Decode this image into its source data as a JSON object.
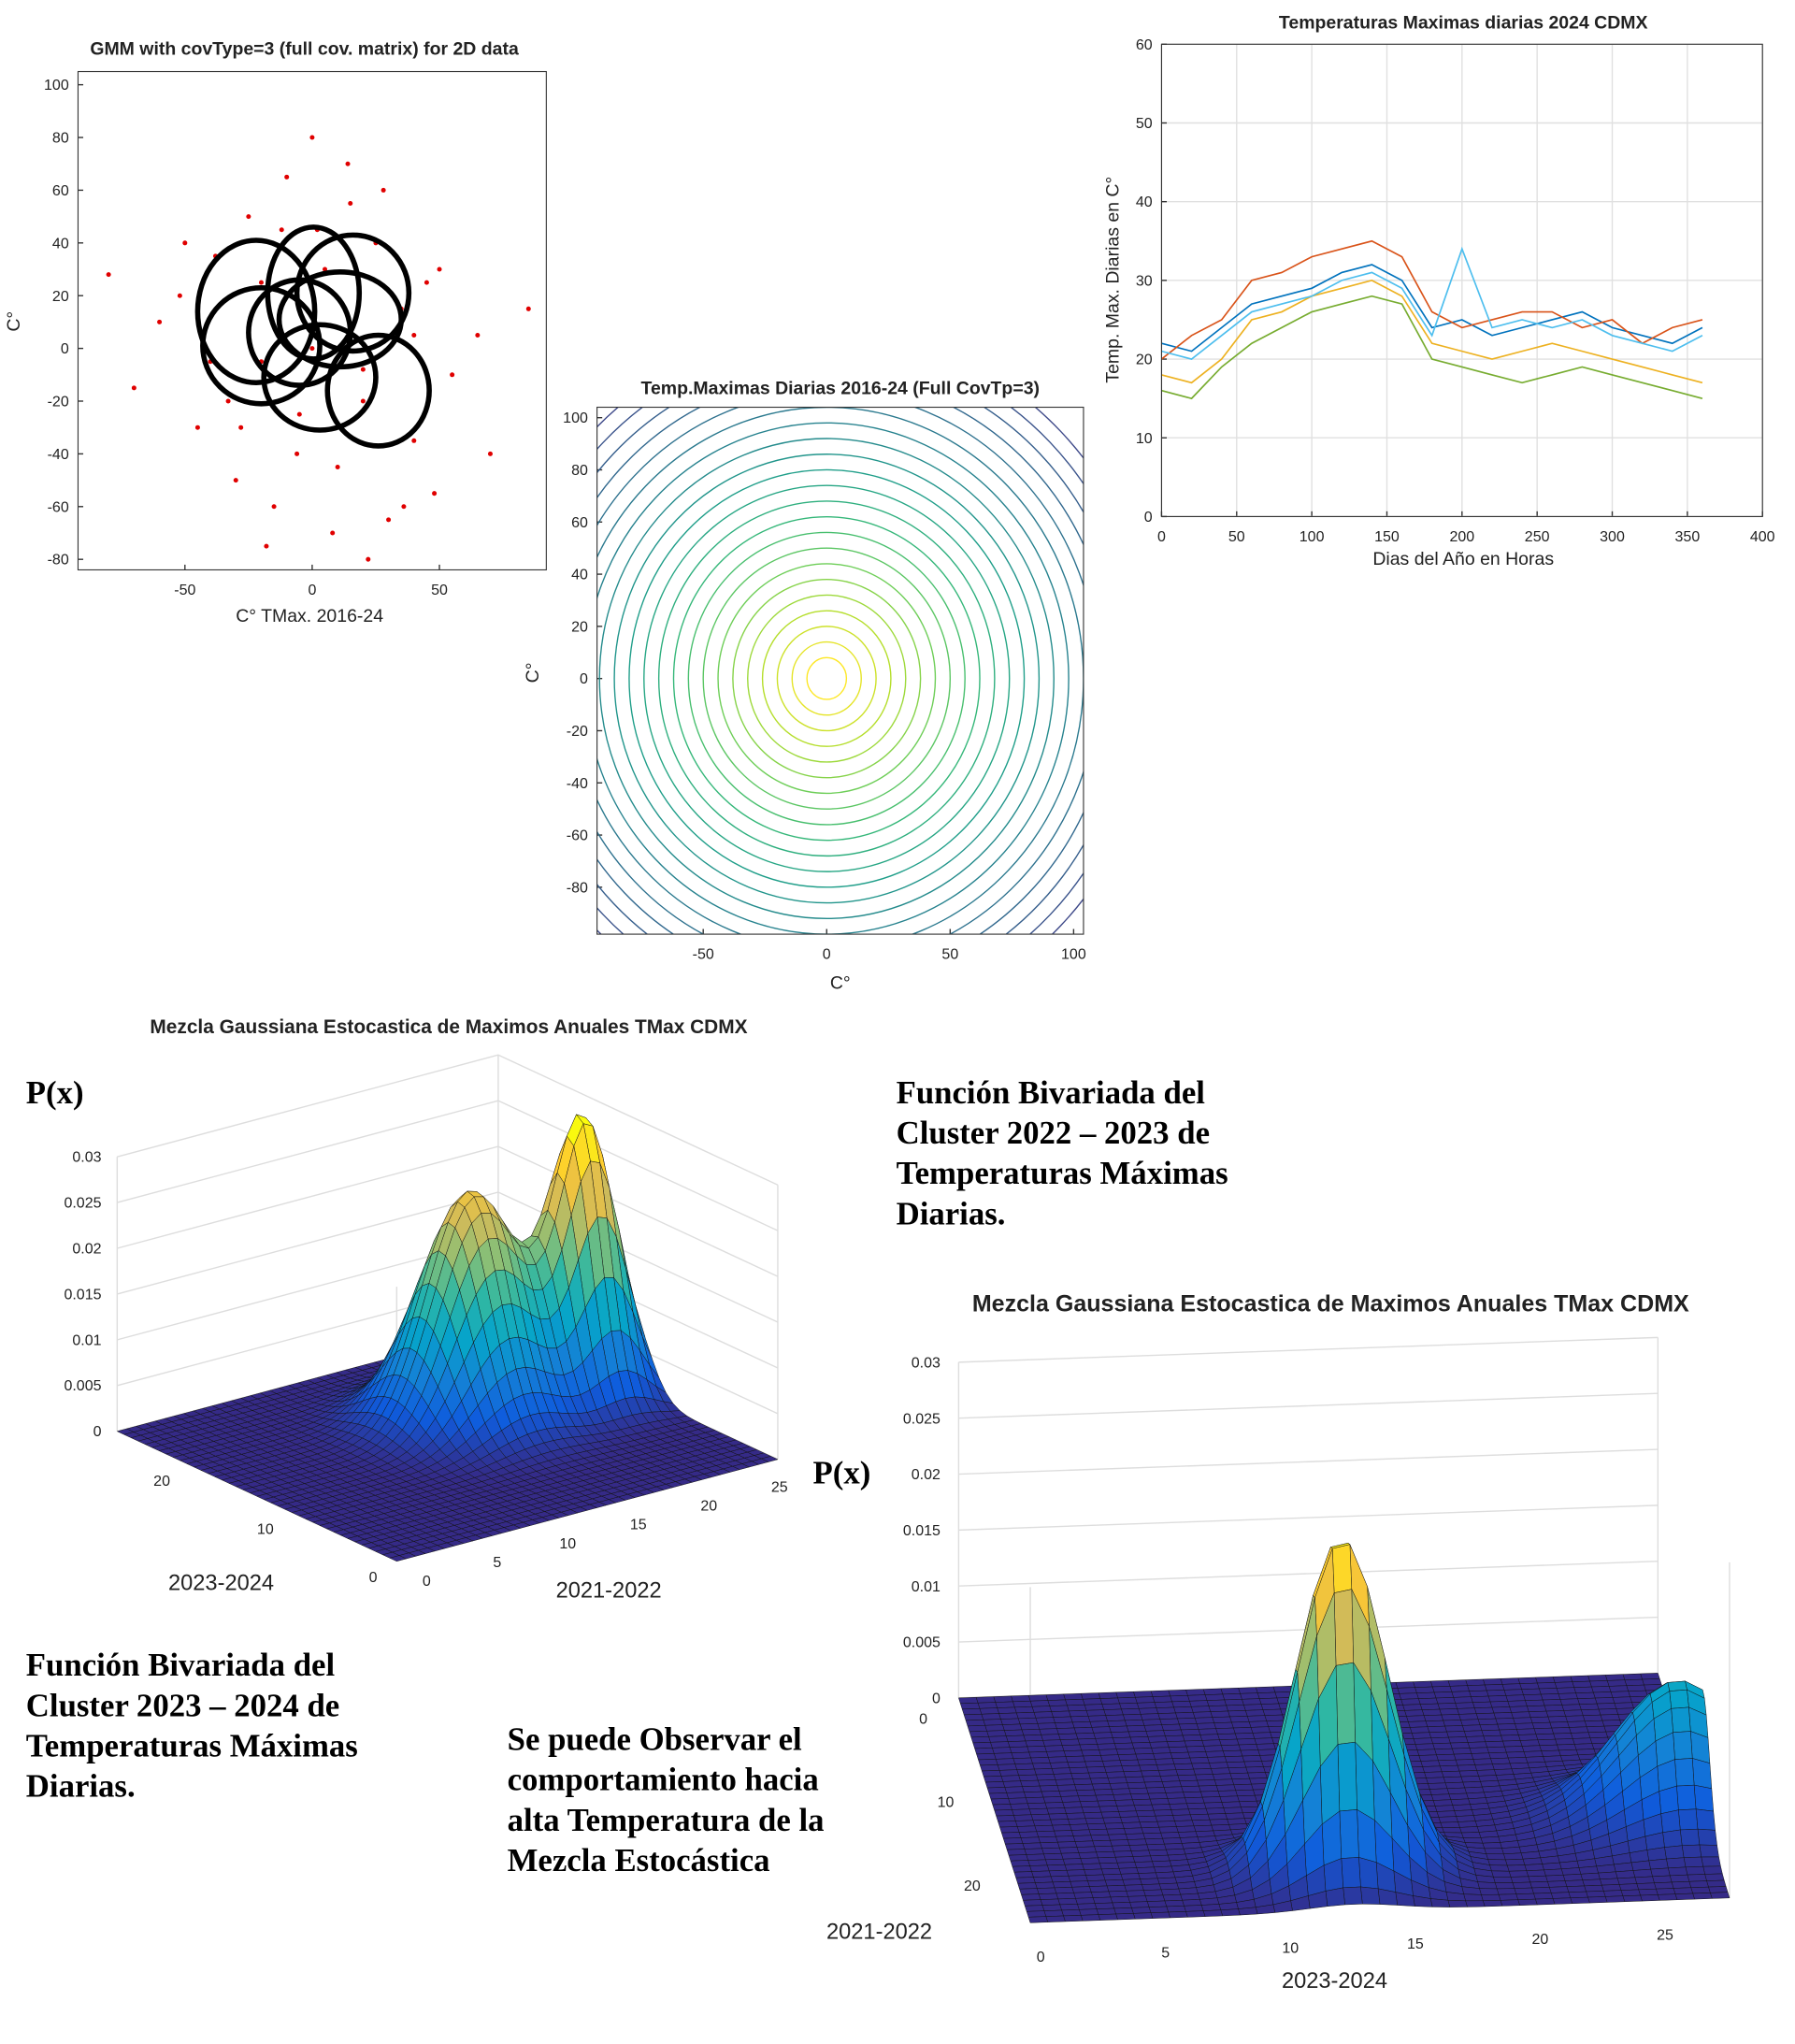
{
  "chart_data": [
    {
      "type": "scatter",
      "title": "GMM with covType=3 (full cov. matrix) for 2D data",
      "xlabel": "C° TMax. 2016-24",
      "ylabel": "C°",
      "xlim": [
        -92,
        92
      ],
      "ylim": [
        -84,
        105
      ],
      "xticks": [
        -50,
        0,
        50
      ],
      "yticks": [
        -80,
        -60,
        -40,
        -20,
        0,
        20,
        40,
        60,
        80,
        100
      ],
      "color": "#e00000",
      "x": [
        -60,
        -45,
        -38,
        -30,
        -25,
        -20,
        -15,
        -10,
        -5,
        0,
        5,
        10,
        15,
        20,
        25,
        30,
        35,
        40,
        45,
        55,
        65,
        -70,
        -52,
        -33,
        -12,
        8,
        28,
        48,
        70,
        -40,
        -20,
        0,
        20,
        40,
        -28,
        -6,
        14,
        36,
        2,
        -18,
        22,
        -50,
        50,
        -80,
        85
      ],
      "y": [
        10,
        -30,
        35,
        -50,
        50,
        -5,
        -60,
        65,
        -25,
        80,
        30,
        -45,
        55,
        -20,
        40,
        -65,
        15,
        -35,
        25,
        -10,
        5,
        -15,
        20,
        -20,
        45,
        -70,
        60,
        -55,
        -40,
        -5,
        25,
        0,
        -8,
        5,
        -30,
        -40,
        70,
        -60,
        45,
        -75,
        -80,
        40,
        30,
        28,
        15
      ],
      "ellipses": [
        {
          "cx": -22,
          "cy": 14,
          "rx": 23,
          "ry": 27
        },
        {
          "cx": 0.5,
          "cy": 21,
          "rx": 18,
          "ry": 25
        },
        {
          "cx": 16,
          "cy": 21,
          "rx": 22,
          "ry": 22
        },
        {
          "cx": -20,
          "cy": 1,
          "rx": 23,
          "ry": 22
        },
        {
          "cx": 11,
          "cy": 11,
          "rx": 24,
          "ry": 18
        },
        {
          "cx": 3,
          "cy": -11,
          "rx": 22,
          "ry": 20
        },
        {
          "cx": 26,
          "cy": -16,
          "rx": 20,
          "ry": 21
        },
        {
          "cx": -5,
          "cy": 6,
          "rx": 20,
          "ry": 20
        }
      ],
      "ellipse_color": "#000000"
    },
    {
      "type": "contour",
      "title": "Temp.Maximas Diarias 2016-24 (Full CovTp=3)",
      "xlabel": "C°",
      "ylabel": "C°",
      "xlim": [
        -93,
        104
      ],
      "ylim": [
        -98,
        104
      ],
      "xticks": [
        -50,
        0,
        50,
        100
      ],
      "yticks": [
        -80,
        -60,
        -40,
        -20,
        0,
        20,
        40,
        60,
        80,
        100
      ],
      "contour_radii": [
        8,
        14,
        20,
        26,
        32,
        38,
        44,
        50,
        56,
        62,
        68,
        74,
        80,
        86,
        92,
        98,
        104,
        110,
        116,
        122,
        128,
        134
      ]
    },
    {
      "type": "line",
      "title": "Temperaturas Maximas diarias 2024 CDMX",
      "xlabel": "Dias del Año en Horas",
      "ylabel": "Temp. Max. Diarias en C°",
      "xlim": [
        0,
        400
      ],
      "ylim": [
        0,
        60
      ],
      "xticks": [
        0,
        50,
        100,
        150,
        200,
        250,
        300,
        350,
        400
      ],
      "yticks": [
        0,
        10,
        20,
        30,
        40,
        50,
        60
      ],
      "grid": true,
      "x": [
        0,
        20,
        40,
        60,
        80,
        100,
        120,
        140,
        160,
        180,
        200,
        220,
        240,
        260,
        280,
        300,
        320,
        340,
        360
      ],
      "series": [
        {
          "color": "#0072bd",
          "values": [
            22,
            21,
            24,
            27,
            28,
            29,
            31,
            32,
            30,
            24,
            25,
            23,
            24,
            25,
            26,
            24,
            23,
            22,
            24
          ]
        },
        {
          "color": "#d95319",
          "values": [
            20,
            23,
            25,
            30,
            31,
            33,
            34,
            35,
            33,
            26,
            24,
            25,
            26,
            26,
            24,
            25,
            22,
            24,
            25
          ]
        },
        {
          "color": "#edb120",
          "values": [
            18,
            17,
            20,
            25,
            26,
            28,
            29,
            30,
            28,
            22,
            21,
            20,
            21,
            22,
            21,
            20,
            19,
            18,
            17
          ]
        },
        {
          "color": "#77ac30",
          "values": [
            16,
            15,
            19,
            22,
            24,
            26,
            27,
            28,
            27,
            20,
            19,
            18,
            17,
            18,
            19,
            18,
            17,
            16,
            15
          ]
        },
        {
          "color": "#4dbeee",
          "values": [
            21,
            20,
            23,
            26,
            27,
            28,
            30,
            31,
            29,
            23,
            34,
            24,
            25,
            24,
            25,
            23,
            22,
            21,
            23
          ]
        }
      ]
    },
    {
      "type": "surface",
      "title": "Mezcla Gaussiana Estocastica de Maximos Anuales TMax CDMX",
      "zlabel": "P(x)",
      "xlabel": "2021-2022",
      "ylabel": "2023-2024",
      "xlim": [
        0,
        27
      ],
      "ylim": [
        0,
        27
      ],
      "zlim": [
        0,
        0.03
      ],
      "xticks": [
        0,
        5,
        10,
        15,
        20,
        25
      ],
      "yticks": [
        0,
        10,
        20
      ],
      "zticks": [
        0,
        0.005,
        0.01,
        0.015,
        0.02,
        0.025,
        0.03
      ],
      "peaks": [
        {
          "x": 17,
          "y": 16,
          "sigma": 3,
          "height": 0.025
        },
        {
          "x": 24,
          "y": 14.6,
          "sigma": 2,
          "height": 0.03
        }
      ]
    },
    {
      "type": "surface",
      "title": "Mezcla Gaussiana Estocastica de Maximos Anuales TMax CDMX",
      "zlabel": "P(x)",
      "xlabel": "2023-2024",
      "ylabel": "2021-2022",
      "xlim": [
        0,
        28
      ],
      "ylim": [
        0,
        27
      ],
      "zlim": [
        0,
        0.03
      ],
      "xticks": [
        0,
        5,
        10,
        15,
        20,
        25
      ],
      "yticks": [
        0,
        10,
        20
      ],
      "zticks": [
        0,
        0.005,
        0.01,
        0.015,
        0.02,
        0.025,
        0.03
      ],
      "peaks": [
        {
          "x": 13,
          "y": 22,
          "sigma": 1.8,
          "height": 0.03
        },
        {
          "x": 27,
          "y": 17,
          "sigma": 2.5,
          "height": 0.012
        }
      ]
    }
  ],
  "annotations": [
    {
      "lines": [
        "Función Bivariada del",
        "Cluster 2022 – 2023 de",
        "Temperaturas Máximas",
        "Diarias."
      ]
    },
    {
      "lines": [
        "Función Bivariada del",
        "Cluster 2023 – 2024 de",
        "Temperaturas Máximas",
        "Diarias."
      ]
    },
    {
      "lines": [
        "Se puede Observar el",
        "comportamiento hacia",
        "alta Temperatura de la",
        "Mezcla Estocástica"
      ]
    }
  ]
}
